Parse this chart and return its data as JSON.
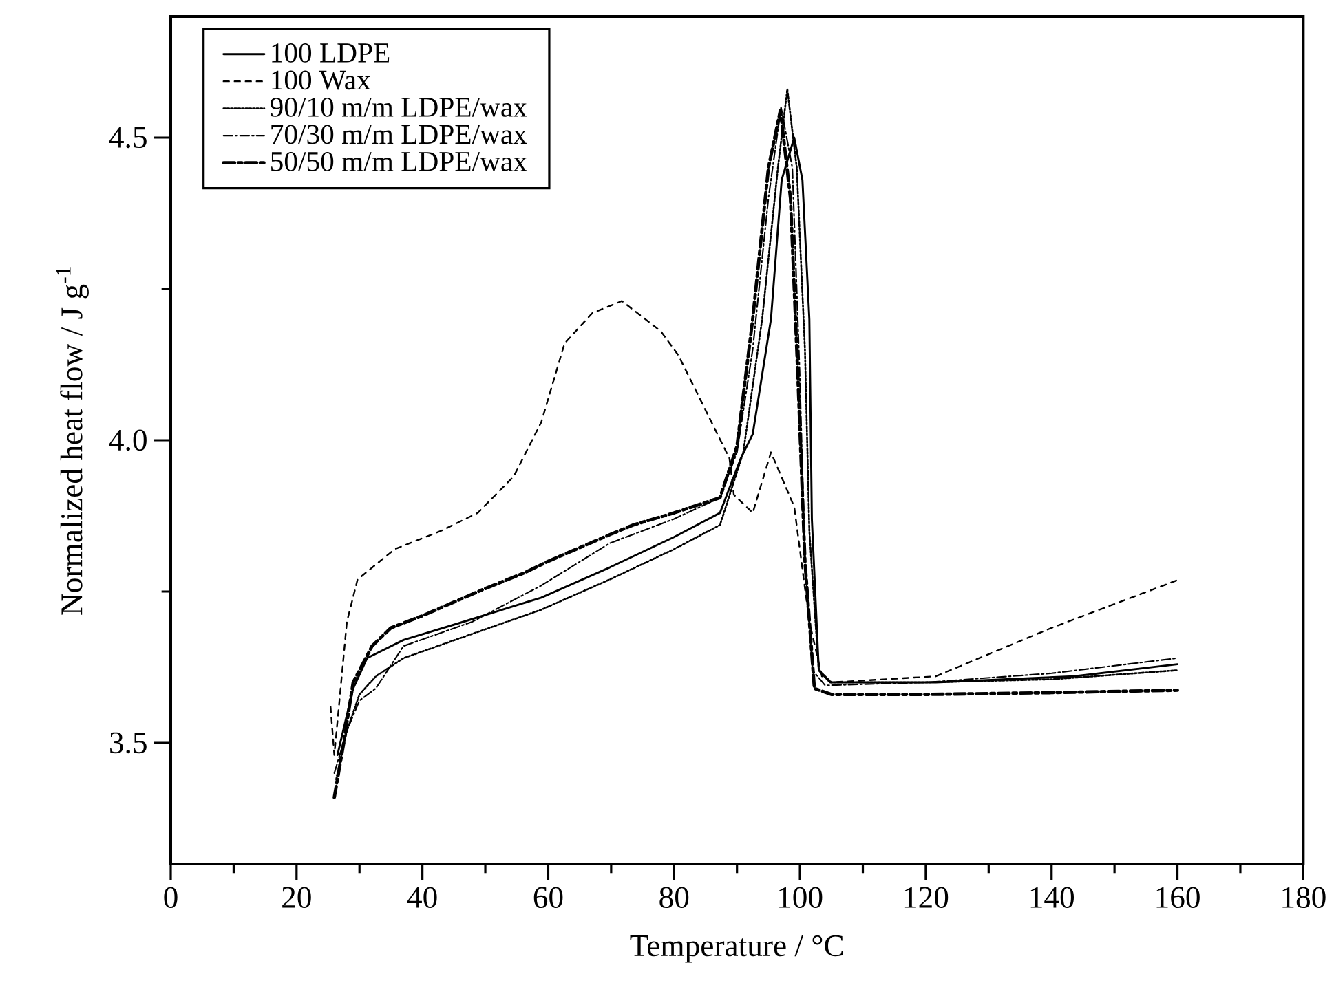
{
  "chart_data": {
    "type": "line",
    "xlabel": "Temperature / °C",
    "ylabel": "Normalized heat flow / J g$^{-1}$",
    "xlim": [
      0,
      180
    ],
    "ylim": [
      3.3,
      4.7
    ],
    "xticks": [
      0,
      {
        "value": 10,
        "label": null
      },
      20,
      {
        "value": 30,
        "label": null
      },
      40,
      {
        "value": 50,
        "label": null
      },
      60,
      {
        "value": 70,
        "label": null
      },
      80,
      {
        "value": 90,
        "label": null
      },
      100,
      {
        "value": 110,
        "label": null
      },
      120,
      {
        "value": 130,
        "label": null
      },
      140,
      {
        "value": 150,
        "label": null
      },
      160,
      {
        "value": 170,
        "label": null
      },
      180
    ],
    "yticks": [
      3.5,
      {
        "value": 3.75,
        "label": null
      },
      {
        "value": 4,
        "label": "4.0"
      },
      {
        "value": 4.25,
        "label": null
      },
      4.5
    ],
    "legend": "top left",
    "grid": false,
    "marker": "none",
    "series": [
      {
        "name": "100 LDPE",
        "color": "#000000",
        "line_style": "solid",
        "x": [
          26.5,
          29,
          31.2,
          37,
          46.5,
          58.9,
          69.8,
          80,
          87.3,
          90.6,
          92.5,
          95.4,
          97.1,
          99.1,
          100.4,
          101.5,
          101.9,
          103,
          104.8,
          121.6,
          143.5,
          160
        ],
        "values": [
          3.48,
          3.59,
          3.64,
          3.67,
          3.7,
          3.74,
          3.79,
          3.84,
          3.88,
          3.97,
          4.01,
          4.2,
          4.43,
          4.5,
          4.43,
          4.2,
          3.87,
          3.62,
          3.6,
          3.6,
          3.61,
          3.63
        ]
      },
      {
        "name": "100 Wax",
        "color": "#000000",
        "line_style": "dashed",
        "x": [
          25.4,
          26,
          28,
          29.7,
          35.6,
          42.9,
          48.8,
          54.5,
          58.9,
          62.6,
          67,
          71.7,
          77.9,
          80.7,
          88.8,
          89.5,
          92.5,
          95.4,
          99.1,
          101.5,
          103.5,
          105,
          121.6,
          140,
          160.3
        ],
        "values": [
          3.56,
          3.48,
          3.7,
          3.77,
          3.82,
          3.85,
          3.88,
          3.94,
          4.03,
          4.16,
          4.21,
          4.23,
          4.18,
          4.14,
          3.97,
          3.91,
          3.88,
          3.98,
          3.89,
          3.7,
          3.61,
          3.6,
          3.61,
          3.69,
          3.77
        ]
      },
      {
        "name": "90/10 m/m LDPE/wax",
        "color": "#000000",
        "line_style": "dotted",
        "x": [
          26.3,
          28,
          30,
          32.6,
          37,
          47.9,
          58.9,
          69.8,
          80,
          87.3,
          91,
          94,
          96.5,
          98,
          99.5,
          100.8,
          101.5,
          103,
          105,
          120,
          140,
          160
        ],
        "values": [
          3.44,
          3.52,
          3.58,
          3.61,
          3.64,
          3.68,
          3.72,
          3.77,
          3.82,
          3.86,
          3.98,
          4.2,
          4.45,
          4.58,
          4.45,
          4.15,
          3.85,
          3.62,
          3.6,
          3.6,
          3.605,
          3.62
        ]
      },
      {
        "name": "70/30 m/m LDPE/wax",
        "color": "#000000",
        "line_style": "dashdotted",
        "x": [
          26,
          28,
          30,
          32.6,
          37,
          47.9,
          58.9,
          69.8,
          80,
          87.3,
          90,
          92.5,
          95,
          97,
          98.8,
          100,
          100.8,
          102,
          104,
          120,
          140,
          160
        ],
        "values": [
          3.45,
          3.52,
          3.57,
          3.59,
          3.66,
          3.7,
          3.76,
          3.83,
          3.87,
          3.905,
          3.98,
          4.15,
          4.4,
          4.55,
          4.45,
          4.1,
          3.8,
          3.62,
          3.595,
          3.6,
          3.615,
          3.64
        ]
      },
      {
        "name": "50/50 m/m LDPE/wax",
        "color": "#000000",
        "line_style": "dashdotdotted",
        "x": [
          26,
          27.5,
          29,
          32,
          35,
          40,
          50,
          56,
          60,
          70,
          73.5,
          80,
          87.3,
          90,
          92.5,
          95,
          96.9,
          98.5,
          99.7,
          100.8,
          102.3,
          105,
          120,
          140,
          160
        ],
        "values": [
          3.41,
          3.5,
          3.6,
          3.66,
          3.69,
          3.71,
          3.755,
          3.78,
          3.8,
          3.845,
          3.86,
          3.88,
          3.905,
          3.99,
          4.2,
          4.45,
          4.545,
          4.4,
          4.1,
          3.8,
          3.59,
          3.58,
          3.58,
          3.583,
          3.587
        ]
      }
    ]
  }
}
